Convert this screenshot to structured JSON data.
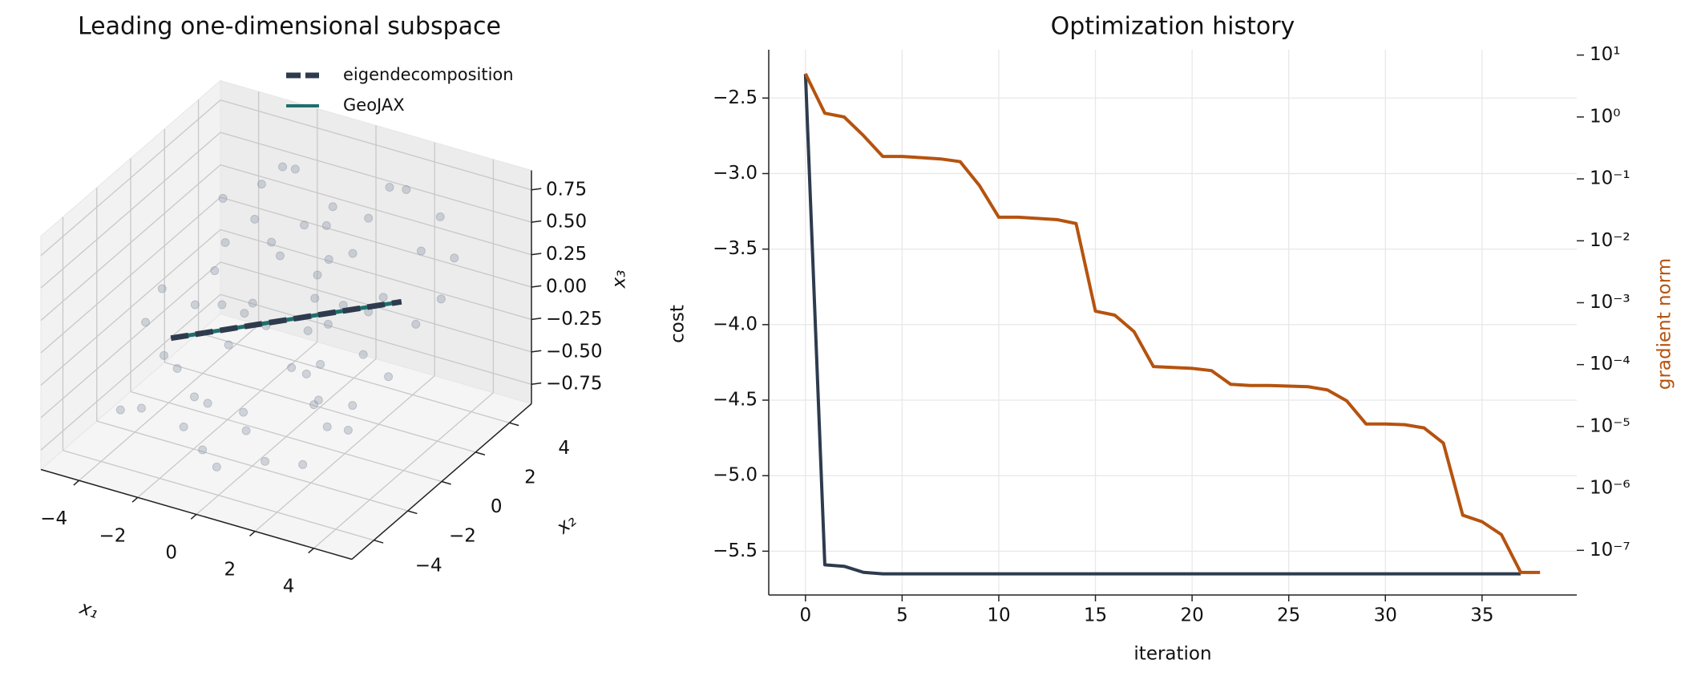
{
  "chart_data": [
    {
      "type": "scatter3d",
      "title": "Leading one-dimensional subspace",
      "xlabel": "x₁",
      "ylabel": "x₂",
      "zlabel": "x₃",
      "xlim": [
        -5.3,
        5.3
      ],
      "ylim": [
        -5.3,
        5.3
      ],
      "zlim": [
        -0.9,
        0.9
      ],
      "xticks": [
        {
          "value": -4,
          "label": "−4"
        },
        {
          "value": -2,
          "label": "−2"
        },
        0,
        2,
        4
      ],
      "yticks": [
        {
          "value": -4,
          "label": "−4"
        },
        {
          "value": -2,
          "label": "−2"
        },
        0,
        2,
        4
      ],
      "zticks": [
        {
          "value": -0.75,
          "label": "−0.75"
        },
        {
          "value": -0.5,
          "label": "−0.50"
        },
        {
          "value": -0.25,
          "label": "−0.25"
        },
        {
          "value": 0,
          "label": "0.00"
        },
        0.25,
        {
          "value": 0.5,
          "label": "0.50"
        },
        0.75
      ],
      "points": {
        "color": "#8a95a5",
        "x": [
          -4.1,
          -3.6,
          -3.2,
          -2.9,
          -2.5,
          -2.2,
          -1.9,
          -1.6,
          -1.3,
          -1.0,
          -0.8,
          -0.5,
          -0.2,
          0.1,
          0.4,
          0.7,
          1.0,
          1.3,
          1.6,
          1.9,
          2.2,
          2.5,
          2.8,
          3.1,
          3.5,
          3.9,
          4.3,
          -3.8,
          -2.7,
          -1.8,
          -0.9,
          0.0,
          0.9,
          1.8,
          2.7,
          3.6,
          -3.0,
          -2.0,
          -1.0,
          0.3,
          1.2,
          2.1,
          3.0,
          -4.4,
          -1.5,
          0.6,
          2.4,
          4.0,
          -2.4,
          0.2,
          1.5,
          -0.6,
          3.3,
          -3.3,
          1.1,
          -1.2,
          2.9,
          -2.8,
          0.8,
          -0.3
        ],
        "y": [
          -1.2,
          2.5,
          -3.0,
          0.8,
          -2.1,
          3.6,
          -0.5,
          1.9,
          -3.8,
          2.8,
          0.2,
          -1.6,
          3.1,
          -2.7,
          1.0,
          -0.9,
          2.2,
          -3.5,
          0.6,
          3.8,
          -1.9,
          1.4,
          -0.3,
          2.6,
          -2.4,
          0.9,
          1.7,
          -3.2,
          -0.7,
          -2.3,
          1.2,
          -4.1,
          3.3,
          -1.1,
          -3.7,
          -0.2,
          1.6,
          4.0,
          -2.9,
          2.0,
          0.4,
          -2.0,
          3.9,
          0.3,
          -0.8,
          -3.4,
          0.7,
          3.0,
          2.3,
          1.5,
          -1.4,
          -3.9,
          -1.8,
          -1.5,
          4.2,
          0.1,
          -2.6,
          3.4,
          -0.1,
          2.9
        ],
        "z": [
          -0.15,
          0.42,
          -0.55,
          0.1,
          -0.3,
          0.63,
          0.05,
          0.28,
          -0.48,
          0.35,
          -0.12,
          0.2,
          0.51,
          -0.4,
          0.08,
          -0.22,
          0.33,
          -0.61,
          0.15,
          0.7,
          -0.26,
          0.18,
          -0.05,
          0.44,
          -0.35,
          0.12,
          0.25,
          -0.58,
          0.02,
          -0.45,
          0.3,
          -0.67,
          0.47,
          -0.1,
          -0.52,
          -0.18,
          0.22,
          0.58,
          -0.38,
          0.26,
          0.0,
          -0.29,
          0.55,
          -0.08,
          -0.2,
          -0.43,
          0.14,
          0.4,
          0.36,
          0.19,
          -0.16,
          -0.6,
          -0.24,
          -0.32,
          0.62,
          0.04,
          -0.34,
          0.48,
          -0.02,
          0.38
        ]
      },
      "series": [
        {
          "name": "eigendecomposition",
          "color": "#2e3b4e",
          "dashed": true,
          "x": [
            -2.6,
            2.6
          ],
          "y": [
            -2.3,
            2.3
          ],
          "z": [
            -0.05,
            0.05
          ]
        },
        {
          "name": "GeoJAX",
          "color": "#1f6f6b",
          "dashed": false,
          "x": [
            -2.6,
            2.6
          ],
          "y": [
            -2.3,
            2.3
          ],
          "z": [
            -0.05,
            0.05
          ]
        }
      ],
      "legend": "upper right"
    },
    {
      "type": "line",
      "title": "Optimization history",
      "xlabel": "iteration",
      "ylabel": "cost",
      "y2label": "gradient norm",
      "x": [
        0,
        1,
        2,
        3,
        4,
        5,
        6,
        7,
        8,
        9,
        10,
        11,
        12,
        13,
        14,
        15,
        16,
        17,
        18,
        19,
        20,
        21,
        22,
        23,
        24,
        25,
        26,
        27,
        28,
        29,
        30,
        31,
        32,
        33,
        34,
        35,
        36,
        37,
        38
      ],
      "xlim": [
        -1.9,
        39.9
      ],
      "xticks": [
        0,
        5,
        10,
        15,
        20,
        25,
        30,
        35
      ],
      "ylim": [
        -5.79,
        -2.18
      ],
      "yticks": [
        {
          "value": -5.5,
          "label": "−5.5"
        },
        {
          "value": -5.0,
          "label": "−5.0"
        },
        {
          "value": -4.5,
          "label": "−4.5"
        },
        {
          "value": -4.0,
          "label": "−4.0"
        },
        {
          "value": -3.5,
          "label": "−3.5"
        },
        {
          "value": -3.0,
          "label": "−3.0"
        },
        {
          "value": -2.5,
          "label": "−2.5"
        }
      ],
      "y2scale": "log",
      "y2lim": [
        1.9e-08,
        12.2
      ],
      "y2ticks": [
        {
          "value": 1e-07,
          "label": "10⁻⁷"
        },
        {
          "value": 1e-06,
          "label": "10⁻⁶"
        },
        {
          "value": 1e-05,
          "label": "10⁻⁵"
        },
        {
          "value": 0.0001,
          "label": "10⁻⁴"
        },
        {
          "value": 0.001,
          "label": "10⁻³"
        },
        {
          "value": 0.01,
          "label": "10⁻²"
        },
        {
          "value": 0.1,
          "label": "10⁻¹"
        },
        {
          "value": 1,
          "label": "10⁰"
        },
        {
          "value": 10,
          "label": "10¹"
        }
      ],
      "grid": true,
      "series": [
        {
          "name": "cost",
          "color": "#2e3b4e",
          "values": [
            -2.34,
            -5.59,
            -5.6,
            -5.64,
            -5.65,
            -5.65,
            -5.65,
            -5.65,
            -5.65,
            -5.65,
            -5.65,
            -5.65,
            -5.65,
            -5.65,
            -5.65,
            -5.65,
            -5.65,
            -5.65,
            -5.65,
            -5.65,
            -5.65,
            -5.65,
            -5.65,
            -5.65,
            -5.65,
            -5.65,
            -5.65,
            -5.65,
            -5.65,
            -5.65,
            -5.65,
            -5.65,
            -5.65,
            -5.65,
            -5.65,
            -5.65,
            -5.65,
            -5.65,
            null
          ]
        },
        {
          "name": "gradient norm",
          "color": "#b5530f",
          "axis": "y2",
          "values": [
            5.0,
            1.15,
            1.0,
            0.5,
            0.23,
            0.23,
            0.22,
            0.21,
            0.19,
            0.078,
            0.024,
            0.024,
            0.023,
            0.022,
            0.019,
            0.00073,
            0.00063,
            0.00034,
            9.3e-05,
            9e-05,
            8.7e-05,
            8e-05,
            4.8e-05,
            4.6e-05,
            4.6e-05,
            4.5e-05,
            4.4e-05,
            3.9e-05,
            2.6e-05,
            1.1e-05,
            1.1e-05,
            1.07e-05,
            9.5e-06,
            5.4e-06,
            3.7e-07,
            2.9e-07,
            1.8e-07,
            4.4e-08,
            4.4e-08
          ]
        }
      ]
    }
  ]
}
